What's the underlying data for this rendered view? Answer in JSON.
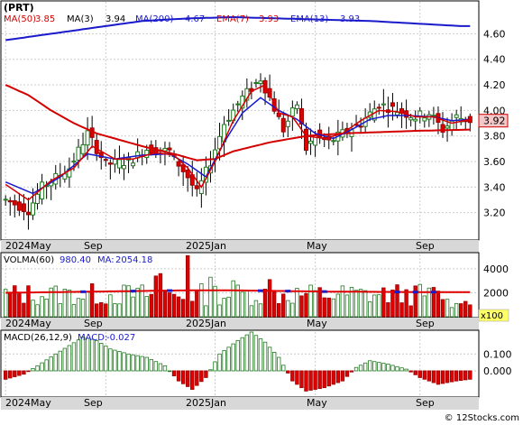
{
  "chart_data": [
    {
      "panel": "price",
      "type": "candlestick",
      "ticker": "(PRT)",
      "indicators": [
        {
          "label": "MA(50)",
          "value": "3.85",
          "color": "#d40000"
        },
        {
          "label": "MA(3)",
          "value": "3.94",
          "color": "#000000"
        },
        {
          "label": "MA(200)",
          "value": "4.67",
          "color": "#1a1acc"
        },
        {
          "label": "EMA(7)",
          "value": "3.93",
          "color": "#d40000"
        },
        {
          "label": "EMA(13)",
          "value": "3.93",
          "color": "#1a1acc"
        }
      ],
      "ylim": [
        3.0,
        4.85
      ],
      "yticks": [
        "4.60",
        "4.40",
        "4.20",
        "4.00",
        "3.80",
        "3.60",
        "3.40",
        "3.20"
      ],
      "last_price": "3.92",
      "x_labels": [
        "2024May",
        "Sep",
        "2025Jan",
        "May",
        "Sep"
      ],
      "grid": true,
      "close_anchors": [
        [
          0,
          3.3
        ],
        [
          5,
          3.22
        ],
        [
          8,
          3.4
        ],
        [
          14,
          3.55
        ],
        [
          18,
          3.82
        ],
        [
          22,
          3.58
        ],
        [
          27,
          3.6
        ],
        [
          31,
          3.7
        ],
        [
          36,
          3.68
        ],
        [
          40,
          3.48
        ],
        [
          42,
          3.35
        ],
        [
          45,
          3.6
        ],
        [
          48,
          3.9
        ],
        [
          52,
          4.1
        ],
        [
          56,
          4.25
        ],
        [
          58,
          4.1
        ],
        [
          61,
          3.85
        ],
        [
          64,
          4.05
        ],
        [
          66,
          3.7
        ],
        [
          68,
          3.8
        ],
        [
          71,
          3.75
        ],
        [
          74,
          3.82
        ],
        [
          78,
          3.9
        ],
        [
          82,
          4.05
        ],
        [
          86,
          4.0
        ],
        [
          90,
          3.95
        ],
        [
          93,
          3.98
        ],
        [
          96,
          3.85
        ],
        [
          99,
          3.95
        ],
        [
          102,
          3.92
        ]
      ],
      "ma200_anchors": [
        [
          0,
          4.55
        ],
        [
          10,
          4.6
        ],
        [
          20,
          4.65
        ],
        [
          30,
          4.7
        ],
        [
          40,
          4.72
        ],
        [
          50,
          4.73
        ],
        [
          60,
          4.72
        ],
        [
          70,
          4.71
        ],
        [
          80,
          4.7
        ],
        [
          90,
          4.68
        ],
        [
          100,
          4.66
        ],
        [
          102,
          4.66
        ]
      ],
      "ma50_anchors": [
        [
          0,
          4.2
        ],
        [
          5,
          4.12
        ],
        [
          10,
          4.0
        ],
        [
          15,
          3.9
        ],
        [
          20,
          3.82
        ],
        [
          30,
          3.72
        ],
        [
          38,
          3.65
        ],
        [
          42,
          3.61
        ],
        [
          46,
          3.62
        ],
        [
          50,
          3.68
        ],
        [
          58,
          3.75
        ],
        [
          66,
          3.8
        ],
        [
          74,
          3.82
        ],
        [
          82,
          3.83
        ],
        [
          90,
          3.84
        ],
        [
          102,
          3.85
        ]
      ],
      "ema7_anchors": [
        [
          0,
          3.42
        ],
        [
          5,
          3.3
        ],
        [
          10,
          3.45
        ],
        [
          15,
          3.55
        ],
        [
          19,
          3.72
        ],
        [
          24,
          3.62
        ],
        [
          28,
          3.62
        ],
        [
          33,
          3.67
        ],
        [
          37,
          3.65
        ],
        [
          40,
          3.55
        ],
        [
          43,
          3.4
        ],
        [
          46,
          3.6
        ],
        [
          50,
          3.92
        ],
        [
          54,
          4.15
        ],
        [
          57,
          4.2
        ],
        [
          60,
          3.98
        ],
        [
          63,
          3.95
        ],
        [
          66,
          3.8
        ],
        [
          70,
          3.78
        ],
        [
          74,
          3.82
        ],
        [
          78,
          3.92
        ],
        [
          82,
          4.0
        ],
        [
          86,
          3.99
        ],
        [
          90,
          3.95
        ],
        [
          94,
          3.95
        ],
        [
          98,
          3.9
        ],
        [
          102,
          3.93
        ]
      ],
      "ema13_anchors": [
        [
          0,
          3.44
        ],
        [
          6,
          3.35
        ],
        [
          12,
          3.48
        ],
        [
          18,
          3.66
        ],
        [
          24,
          3.62
        ],
        [
          30,
          3.65
        ],
        [
          36,
          3.66
        ],
        [
          40,
          3.58
        ],
        [
          44,
          3.48
        ],
        [
          48,
          3.75
        ],
        [
          52,
          3.98
        ],
        [
          56,
          4.1
        ],
        [
          60,
          4.0
        ],
        [
          64,
          3.93
        ],
        [
          68,
          3.82
        ],
        [
          72,
          3.78
        ],
        [
          76,
          3.85
        ],
        [
          80,
          3.93
        ],
        [
          84,
          3.96
        ],
        [
          88,
          3.96
        ],
        [
          94,
          3.95
        ],
        [
          98,
          3.92
        ],
        [
          102,
          3.93
        ]
      ]
    },
    {
      "panel": "volume",
      "type": "bar",
      "label_volma": "VOLMA(60)",
      "volma_value": "980.40",
      "label_ma": "MA:",
      "ma_value": "2054.18",
      "ylim": [
        0,
        5200
      ],
      "yticks": [
        "4000",
        "2000"
      ],
      "scale_note": "x100",
      "spike_volumes": [
        [
          40,
          5100
        ],
        [
          34,
          3600
        ],
        [
          33,
          3400
        ],
        [
          50,
          3000
        ],
        [
          58,
          3100
        ],
        [
          45,
          3300
        ]
      ],
      "volma_anchors": [
        [
          0,
          2000
        ],
        [
          10,
          2050
        ],
        [
          20,
          2100
        ],
        [
          30,
          2150
        ],
        [
          40,
          2200
        ],
        [
          50,
          2200
        ],
        [
          60,
          2150
        ],
        [
          70,
          2100
        ],
        [
          80,
          2080
        ],
        [
          90,
          2060
        ],
        [
          102,
          2054
        ]
      ]
    },
    {
      "panel": "macd",
      "type": "histogram",
      "label": "MACD(26,12,9)",
      "macd_label": "MACD:",
      "macd_value": "-0.027",
      "ylim": [
        -0.15,
        0.23
      ],
      "yticks": [
        "0.100",
        "0.000"
      ],
      "hist_anchors": [
        [
          0,
          -0.05
        ],
        [
          4,
          -0.02
        ],
        [
          7,
          0.03
        ],
        [
          11,
          0.1
        ],
        [
          14,
          0.15
        ],
        [
          17,
          0.2
        ],
        [
          20,
          0.18
        ],
        [
          23,
          0.13
        ],
        [
          27,
          0.1
        ],
        [
          31,
          0.08
        ],
        [
          35,
          0.03
        ],
        [
          38,
          -0.06
        ],
        [
          41,
          -0.11
        ],
        [
          44,
          -0.04
        ],
        [
          47,
          0.1
        ],
        [
          51,
          0.18
        ],
        [
          54,
          0.23
        ],
        [
          57,
          0.17
        ],
        [
          60,
          0.08
        ],
        [
          63,
          -0.06
        ],
        [
          66,
          -0.12
        ],
        [
          70,
          -0.1
        ],
        [
          74,
          -0.06
        ],
        [
          77,
          0.02
        ],
        [
          80,
          0.06
        ],
        [
          84,
          0.04
        ],
        [
          88,
          0.01
        ],
        [
          91,
          -0.04
        ],
        [
          95,
          -0.08
        ],
        [
          99,
          -0.06
        ],
        [
          102,
          -0.05
        ]
      ]
    }
  ],
  "watermark": "© 12Stocks.com"
}
